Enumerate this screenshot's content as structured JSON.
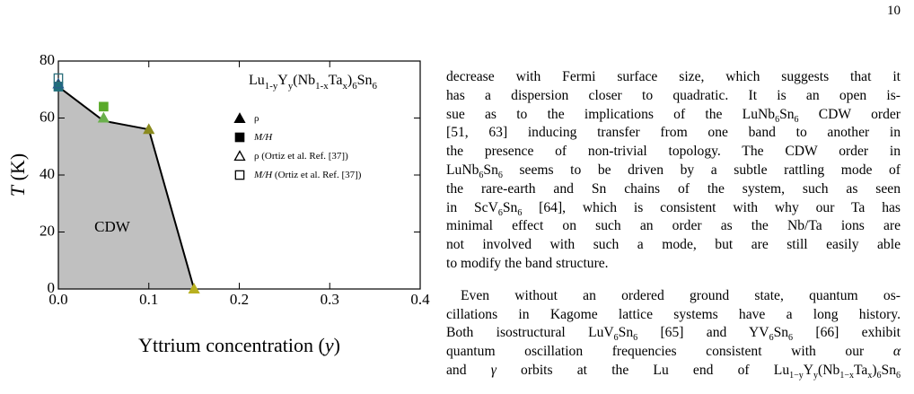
{
  "page_number": "10",
  "chart_data": {
    "type": "phase-diagram",
    "title": [
      "Lu",
      {
        "sub": "1-y"
      },
      "Y",
      {
        "sub": "y"
      },
      "(Nb",
      {
        "sub": "1-x"
      },
      "Ta",
      {
        "sub": "x"
      },
      ")",
      {
        "sub": "6"
      },
      "Sn",
      {
        "sub": "6"
      }
    ],
    "xlabel": [
      "Yttrium concentration (",
      {
        "i": "y"
      },
      ")"
    ],
    "ylabel": [
      {
        "i": "T"
      },
      " (K)"
    ],
    "annotation": "CDW",
    "xlim": [
      0,
      0.4
    ],
    "ylim": [
      0,
      80
    ],
    "xticks": [
      {
        "value": 0,
        "label": "0.0"
      },
      0.1,
      0.2,
      0.3,
      0.4
    ],
    "yticks": [
      0,
      20,
      40,
      60,
      80
    ],
    "boundary": {
      "x": [
        0,
        0.05,
        0.1,
        0.15
      ],
      "values": [
        71,
        59,
        56,
        0
      ],
      "color": "#000000",
      "fill": "#c0c0c0"
    },
    "series": [
      {
        "name": [
          "ρ"
        ],
        "marker": "triangle",
        "filled": true,
        "x": [
          0.05,
          0.1,
          0.15
        ],
        "values": [
          60,
          56,
          0
        ],
        "colors": [
          "#6ab04c",
          "#8a8a1e",
          "#b8b020"
        ]
      },
      {
        "name": [
          {
            "i": "M/H"
          }
        ],
        "marker": "square",
        "filled": true,
        "x": [
          0,
          0.05
        ],
        "values": [
          71,
          64
        ],
        "colors": [
          "#1f6f7a",
          "#5aaa2a"
        ]
      },
      {
        "name": [
          "ρ (Ortiz et al. Ref. [37])"
        ],
        "marker": "triangle",
        "filled": false,
        "x": [
          0
        ],
        "values": [
          72
        ],
        "colors": [
          "#2a5e8a"
        ]
      },
      {
        "name": [
          {
            "i": "M/H"
          },
          " (Ortiz et al. Ref. [37])"
        ],
        "marker": "square",
        "filled": false,
        "x": [
          0
        ],
        "values": [
          74
        ],
        "colors": [
          "#2a6e7a"
        ]
      }
    ]
  },
  "paragraphs": [
    {
      "lines": [
        [
          "decrease with Fermi surface size, which suggests that it"
        ],
        [
          "has a dispersion closer to quadratic.  It is an open is-"
        ],
        [
          "sue as to the implications of the LuNb",
          {
            "sub": "6"
          },
          "Sn",
          {
            "sub": "6"
          },
          " CDW order"
        ],
        [
          "[51, 63] inducing transfer from one band to another in"
        ],
        [
          "the presence of non-trivial topology. The CDW order in"
        ],
        [
          "LuNb",
          {
            "sub": "6"
          },
          "Sn",
          {
            "sub": "6"
          },
          " seems to be driven by a subtle rattling mode of"
        ],
        [
          "the rare-earth and Sn chains of the system, such as seen"
        ],
        [
          "in ScV",
          {
            "sub": "6"
          },
          "Sn",
          {
            "sub": "6"
          },
          " [64], which is consistent with why our Ta has"
        ],
        [
          "minimal effect on such an order as the Nb/Ta ions are"
        ],
        [
          "not involved with such a mode, but are still easily able"
        ],
        [
          "to modify the band structure."
        ]
      ]
    },
    {
      "lines": [
        [
          "Even without an ordered ground state, quantum os-"
        ],
        [
          "cillations in Kagome lattice systems have a long history."
        ],
        [
          "Both isostructural LuV",
          {
            "sub": "6"
          },
          "Sn",
          {
            "sub": "6"
          },
          " [65] and YV",
          {
            "sub": "6"
          },
          "Sn",
          {
            "sub": "6"
          },
          " [66] exhibit"
        ],
        [
          "quantum oscillation frequencies consistent with our ",
          {
            "i": "α"
          }
        ],
        [
          "and ",
          {
            "i": "γ"
          },
          " orbits at the Lu end of Lu",
          {
            "sub": "1−y"
          },
          "Y",
          {
            "sub": "y"
          },
          "(Nb",
          {
            "sub": "1−x"
          },
          "Ta",
          {
            "sub": "x"
          },
          ")",
          {
            "sub": "6"
          },
          "Sn",
          {
            "sub": "6"
          }
        ]
      ]
    }
  ]
}
